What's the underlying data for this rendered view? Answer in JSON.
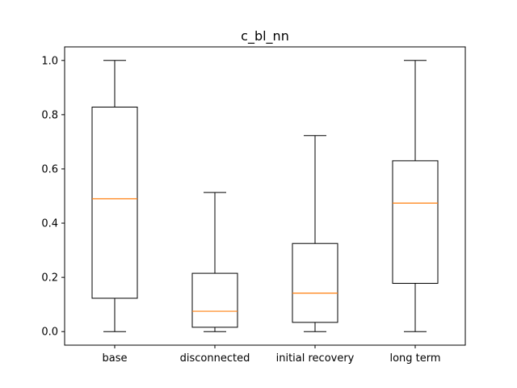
{
  "chart_data": {
    "type": "box",
    "title": "c_bl_nn",
    "xlabel": "",
    "ylabel": "",
    "categories": [
      "base",
      "disconnected",
      "initial recovery",
      "long term"
    ],
    "boxes": [
      {
        "category": "base",
        "whisker_low": 0.0,
        "q1": 0.123,
        "median": 0.49,
        "q3": 0.828,
        "whisker_high": 1.0
      },
      {
        "category": "disconnected",
        "whisker_low": 0.0,
        "q1": 0.016,
        "median": 0.075,
        "q3": 0.215,
        "whisker_high": 0.513
      },
      {
        "category": "initial recovery",
        "whisker_low": 0.0,
        "q1": 0.034,
        "median": 0.142,
        "q3": 0.325,
        "whisker_high": 0.723
      },
      {
        "category": "long term",
        "whisker_low": 0.0,
        "q1": 0.178,
        "median": 0.474,
        "q3": 0.63,
        "whisker_high": 1.0
      }
    ],
    "ylim": [
      -0.05,
      1.05
    ],
    "yticks": [
      0.0,
      0.2,
      0.4,
      0.6,
      0.8,
      1.0
    ],
    "ytick_labels": [
      "0.0",
      "0.2",
      "0.4",
      "0.6",
      "0.8",
      "1.0"
    ],
    "grid": false,
    "colors": {
      "box": "#000000",
      "median": "#ff7f0e",
      "background": "#ffffff"
    }
  }
}
